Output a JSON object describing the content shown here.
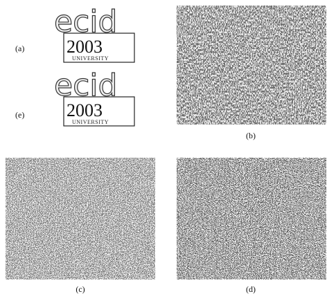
{
  "figure": {
    "labels": {
      "a": "(a)",
      "e": "(e)",
      "b": "(b)",
      "c": "(c)",
      "d": "(d)"
    },
    "logo_a": {
      "word": "ecid",
      "year": "2003",
      "name": "UNIVERSITY"
    },
    "logo_e": {
      "word": "ecid",
      "year": "2003",
      "name": "UNIVERSITY"
    }
  }
}
